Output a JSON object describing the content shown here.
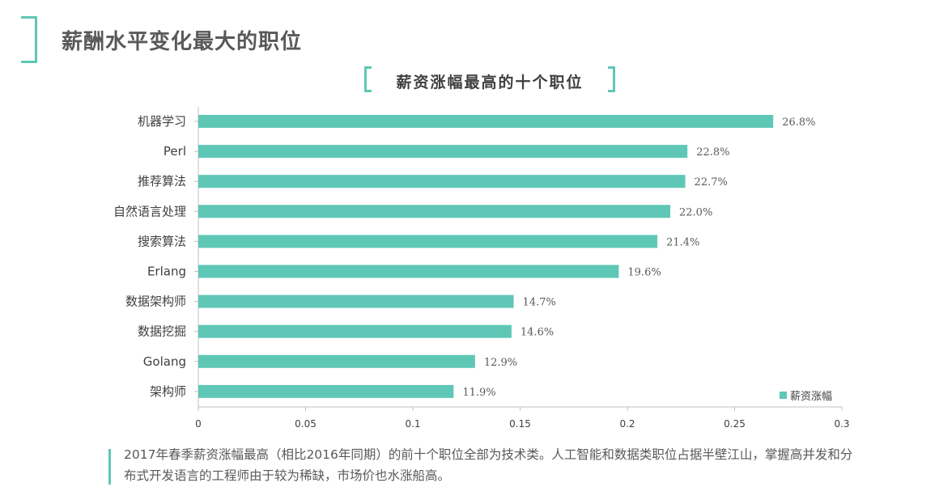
{
  "header": {
    "title": "薪酬水平变化最大的职位"
  },
  "chart_data": {
    "type": "bar",
    "orientation": "horizontal",
    "title": "薪资涨幅最高的十个职位",
    "categories": [
      "机器学习",
      "Perl",
      "推荐算法",
      "自然语言处理",
      "搜索算法",
      "Erlang",
      "数据架构师",
      "数据挖掘",
      "Golang",
      "架构师"
    ],
    "values": [
      0.268,
      0.228,
      0.227,
      0.22,
      0.214,
      0.196,
      0.147,
      0.146,
      0.129,
      0.119
    ],
    "value_labels": [
      "26.8%",
      "22.8%",
      "22.7%",
      "22.0%",
      "21.4%",
      "19.6%",
      "14.7%",
      "14.6%",
      "12.9%",
      "11.9%"
    ],
    "xlim": [
      0,
      0.3
    ],
    "x_ticks": [
      "0",
      "0.05",
      "0.1",
      "0.15",
      "0.2",
      "0.25",
      "0.3"
    ],
    "x_tick_values": [
      0,
      0.05,
      0.1,
      0.15,
      0.2,
      0.25,
      0.3
    ],
    "series_name": "薪资涨幅",
    "legend_position": "bottom-right",
    "grid": false,
    "bar_color": "#5fc7b6"
  },
  "note": {
    "text": "2017年春季薪资涨幅最高（相比2016年同期）的前十个职位全部为技术类。人工智能和数据类职位占据半壁江山，掌握高并发和分布式开发语言的工程师由于较为稀缺，市场价也水涨船高。"
  }
}
